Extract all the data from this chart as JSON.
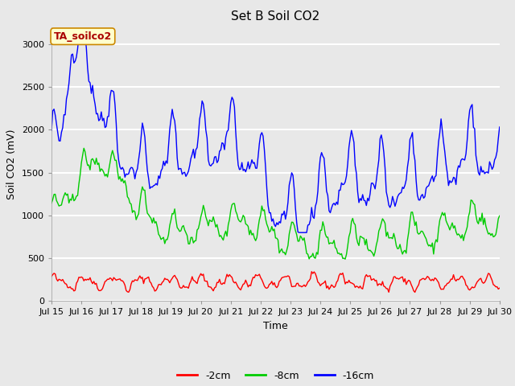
{
  "title": "Set B Soil CO2",
  "xlabel": "Time",
  "ylabel": "Soil CO2 (mV)",
  "ylim": [
    0,
    3200
  ],
  "xlim": [
    0,
    360
  ],
  "fig_bg_color": "#e8e8e8",
  "plot_bg_color": "#e8e8e8",
  "annotation_text": "TA_soilco2",
  "annotation_bg": "#ffffcc",
  "annotation_border": "#cc8800",
  "annotation_text_color": "#aa0000",
  "legend_labels": [
    "-2cm",
    "-8cm",
    "-16cm"
  ],
  "legend_colors": [
    "#ff0000",
    "#00cc00",
    "#0000ff"
  ],
  "xtick_labels": [
    "Jul 15",
    "Jul 16",
    "Jul 17",
    "Jul 18",
    "Jul 19",
    "Jul 20",
    "Jul 21",
    "Jul 22",
    "Jul 23",
    "Jul 24",
    "Jul 25",
    "Jul 26",
    "Jul 27",
    "Jul 28",
    "Jul 29",
    "Jul 30"
  ],
  "xtick_positions": [
    0,
    24,
    48,
    72,
    96,
    120,
    144,
    168,
    192,
    216,
    240,
    264,
    288,
    312,
    336,
    360
  ],
  "ytick_positions": [
    0,
    500,
    1000,
    1500,
    2000,
    2500,
    3000
  ],
  "line_width": 1.0,
  "title_fontsize": 11,
  "label_fontsize": 9,
  "tick_fontsize": 8,
  "grid_color": "#ffffff",
  "grid_lw": 1.5
}
